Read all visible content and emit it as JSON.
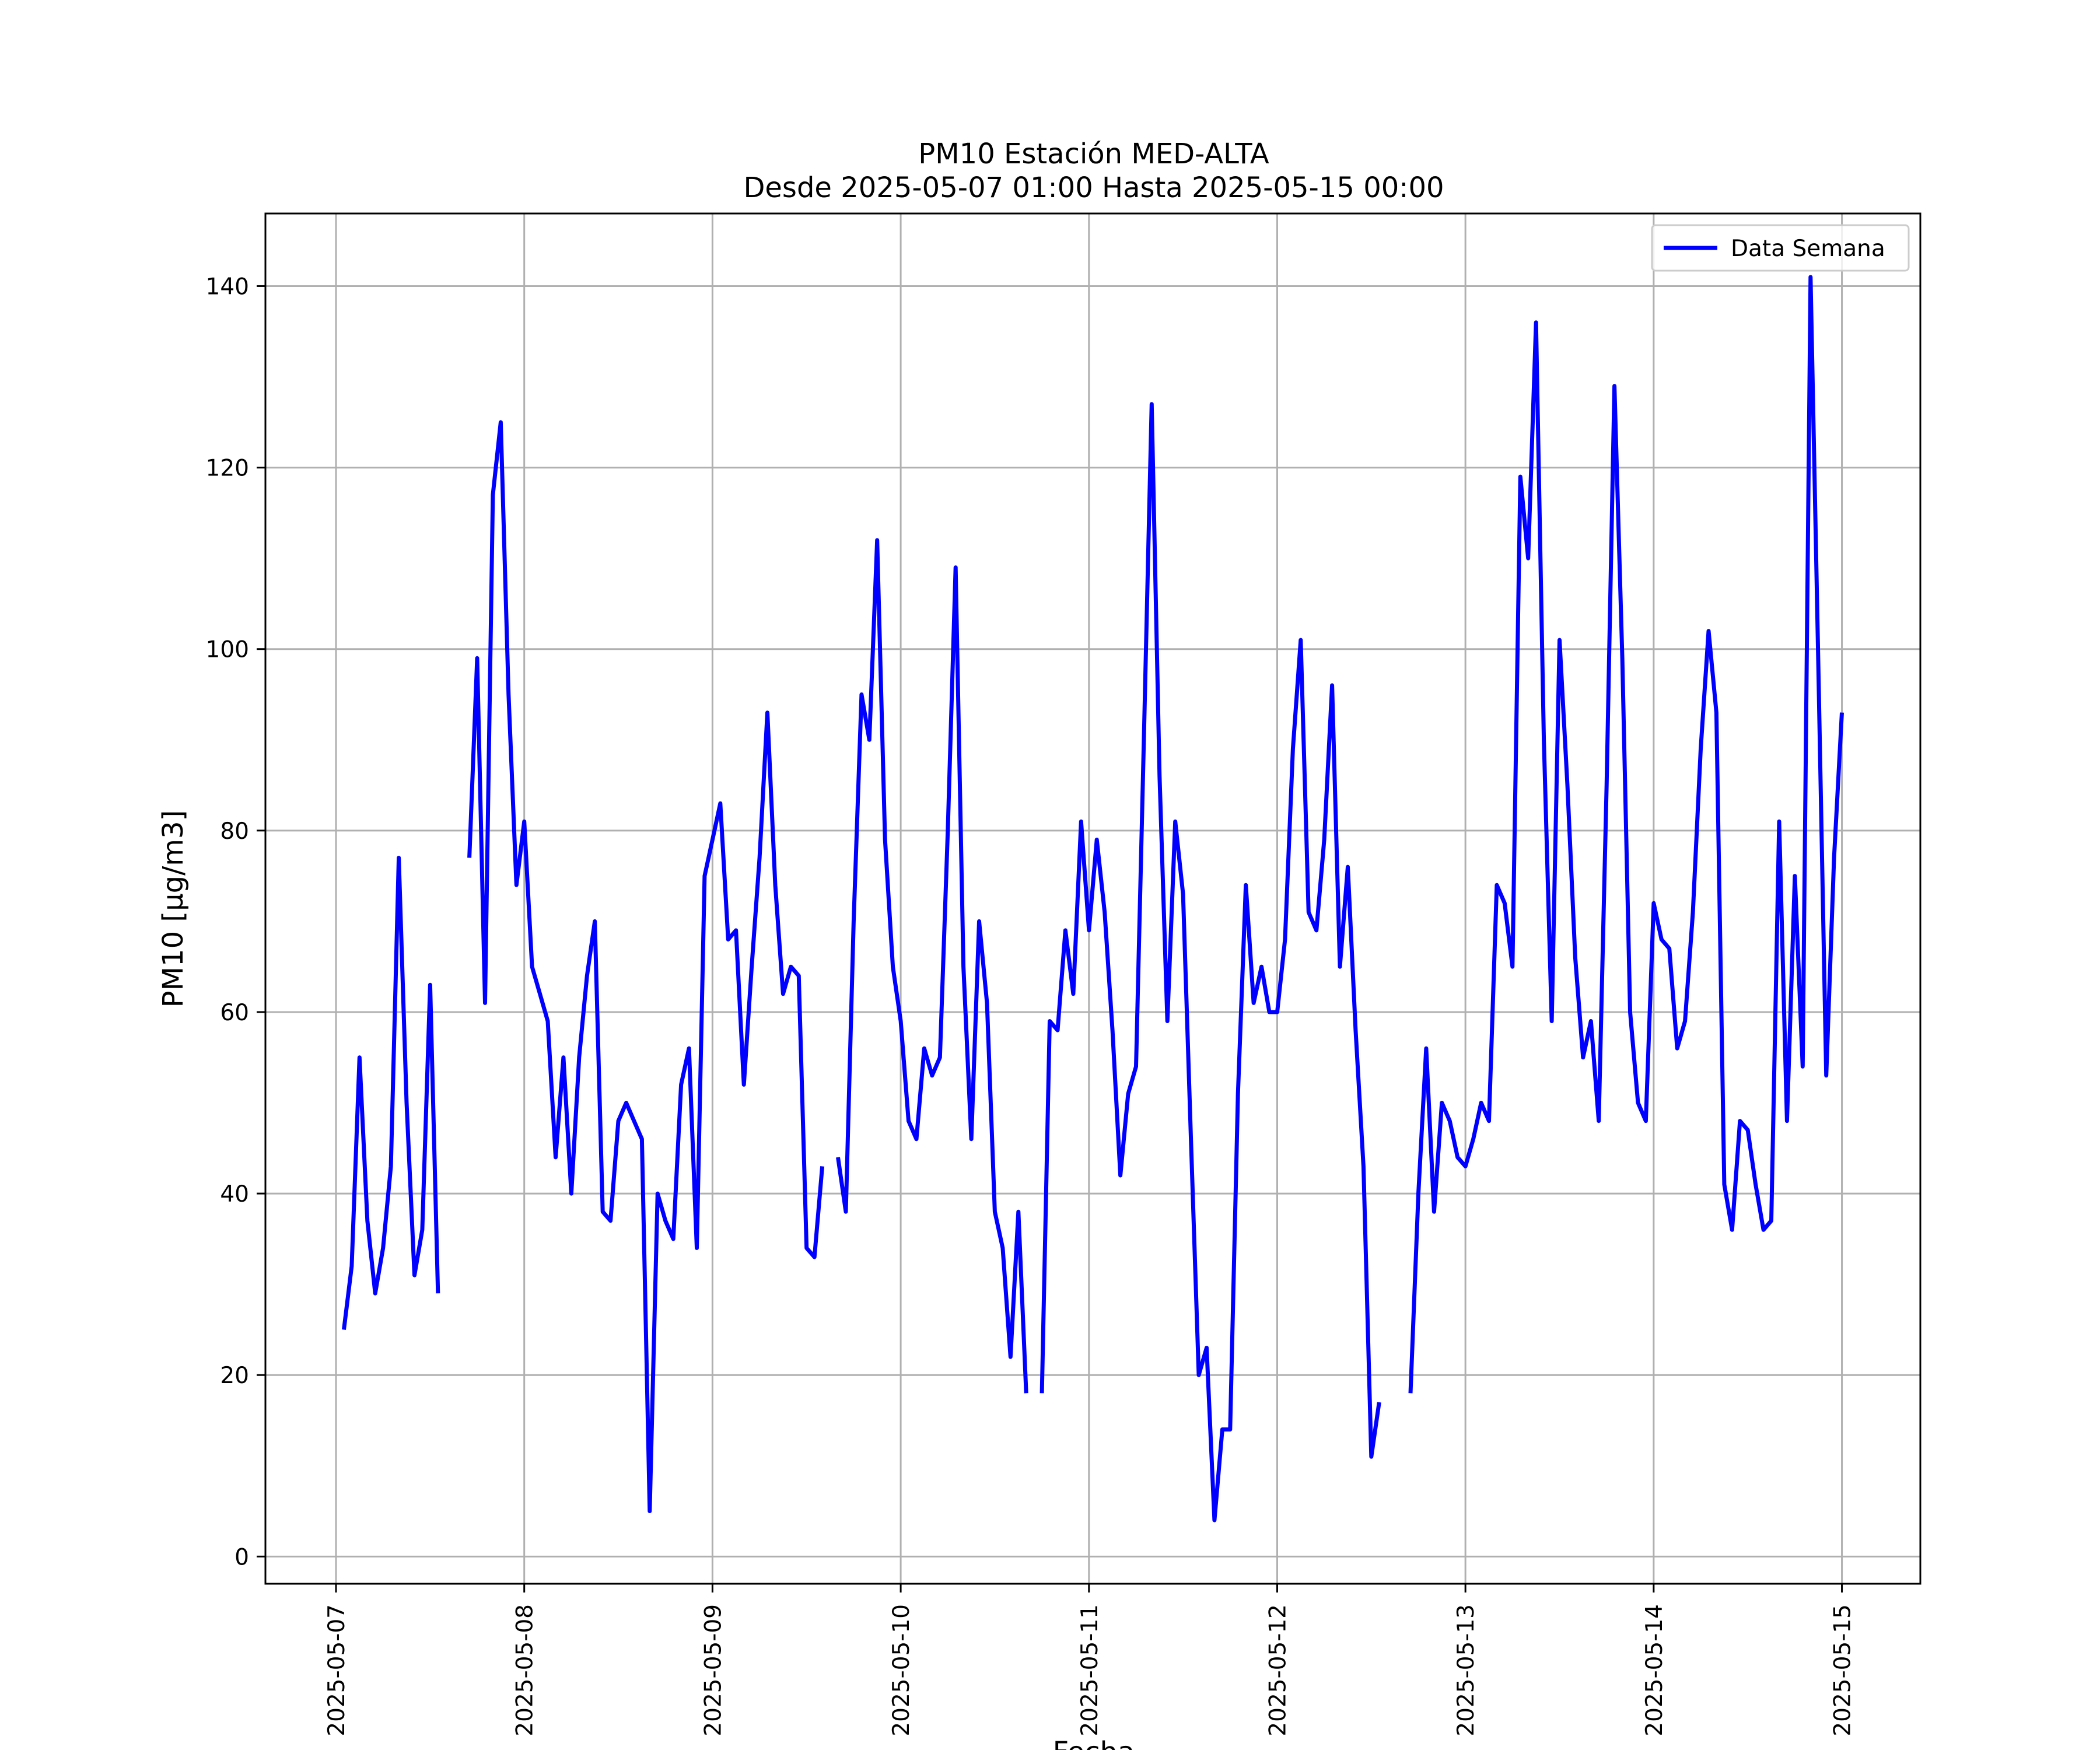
{
  "chart_data": {
    "type": "line",
    "title": [
      "PM10 Estación MED-ALTA",
      "Desde 2025-05-07 01:00 Hasta 2025-05-15 00:00"
    ],
    "xlabel": "Fecha",
    "ylabel": "PM10 [μg/m3]",
    "x_tick_labels": [
      "2025-05-07",
      "2025-05-08",
      "2025-05-09",
      "2025-05-10",
      "2025-05-11",
      "2025-05-12",
      "2025-05-13",
      "2025-05-14",
      "2025-05-15"
    ],
    "y_ticks": [
      0,
      20,
      40,
      60,
      80,
      100,
      120,
      140
    ],
    "xlim": [
      "2025-05-06 15:00",
      "2025-05-15 10:00"
    ],
    "ylim": [
      -3,
      148
    ],
    "grid": true,
    "legend": {
      "placement": "upper right",
      "entries": [
        "Data Semana"
      ]
    },
    "colors": {
      "series": "#0000ff",
      "grid": "#b0b0b0",
      "axes": "#000000"
    },
    "series": [
      {
        "name": "Data Semana",
        "points": [
          [
            "2025-05-07 01:00",
            25
          ],
          [
            "2025-05-07 02:00",
            32
          ],
          [
            "2025-05-07 03:00",
            55
          ],
          [
            "2025-05-07 04:00",
            37
          ],
          [
            "2025-05-07 05:00",
            29
          ],
          [
            "2025-05-07 06:00",
            34
          ],
          [
            "2025-05-07 07:00",
            43
          ],
          [
            "2025-05-07 08:00",
            77
          ],
          [
            "2025-05-07 09:00",
            50
          ],
          [
            "2025-05-07 10:00",
            31
          ],
          [
            "2025-05-07 11:00",
            36
          ],
          [
            "2025-05-07 12:00",
            63
          ],
          [
            "2025-05-07 13:00",
            29
          ],
          [
            "2025-05-07 14:00",
            null
          ],
          [
            "2025-05-07 15:00",
            null
          ],
          [
            "2025-05-07 16:00",
            null
          ],
          [
            "2025-05-07 17:00",
            77
          ],
          [
            "2025-05-07 18:00",
            99
          ],
          [
            "2025-05-07 19:00",
            61
          ],
          [
            "2025-05-07 20:00",
            117
          ],
          [
            "2025-05-07 21:00",
            125
          ],
          [
            "2025-05-07 22:00",
            95
          ],
          [
            "2025-05-07 23:00",
            74
          ],
          [
            "2025-05-08 00:00",
            81
          ],
          [
            "2025-05-08 01:00",
            65
          ],
          [
            "2025-05-08 02:00",
            62
          ],
          [
            "2025-05-08 03:00",
            59
          ],
          [
            "2025-05-08 04:00",
            44
          ],
          [
            "2025-05-08 05:00",
            55
          ],
          [
            "2025-05-08 06:00",
            40
          ],
          [
            "2025-05-08 07:00",
            55
          ],
          [
            "2025-05-08 08:00",
            64
          ],
          [
            "2025-05-08 09:00",
            70
          ],
          [
            "2025-05-08 10:00",
            38
          ],
          [
            "2025-05-08 11:00",
            37
          ],
          [
            "2025-05-08 12:00",
            48
          ],
          [
            "2025-05-08 13:00",
            50
          ],
          [
            "2025-05-08 14:00",
            48
          ],
          [
            "2025-05-08 15:00",
            46
          ],
          [
            "2025-05-08 16:00",
            5
          ],
          [
            "2025-05-08 17:00",
            40
          ],
          [
            "2025-05-08 18:00",
            37
          ],
          [
            "2025-05-08 19:00",
            35
          ],
          [
            "2025-05-08 20:00",
            52
          ],
          [
            "2025-05-08 21:00",
            56
          ],
          [
            "2025-05-08 22:00",
            34
          ],
          [
            "2025-05-08 23:00",
            75
          ],
          [
            "2025-05-09 00:00",
            79
          ],
          [
            "2025-05-09 01:00",
            83
          ],
          [
            "2025-05-09 02:00",
            68
          ],
          [
            "2025-05-09 03:00",
            69
          ],
          [
            "2025-05-09 04:00",
            52
          ],
          [
            "2025-05-09 05:00",
            65
          ],
          [
            "2025-05-09 06:00",
            77
          ],
          [
            "2025-05-09 07:00",
            93
          ],
          [
            "2025-05-09 08:00",
            74
          ],
          [
            "2025-05-09 09:00",
            62
          ],
          [
            "2025-05-09 10:00",
            65
          ],
          [
            "2025-05-09 11:00",
            64
          ],
          [
            "2025-05-09 12:00",
            34
          ],
          [
            "2025-05-09 13:00",
            33
          ],
          [
            "2025-05-09 14:00",
            43
          ],
          [
            "2025-05-09 15:00",
            null
          ],
          [
            "2025-05-09 16:00",
            44
          ],
          [
            "2025-05-09 17:00",
            38
          ],
          [
            "2025-05-09 18:00",
            70
          ],
          [
            "2025-05-09 19:00",
            95
          ],
          [
            "2025-05-09 20:00",
            90
          ],
          [
            "2025-05-09 21:00",
            112
          ],
          [
            "2025-05-09 22:00",
            79
          ],
          [
            "2025-05-09 23:00",
            65
          ],
          [
            "2025-05-10 00:00",
            59
          ],
          [
            "2025-05-10 01:00",
            48
          ],
          [
            "2025-05-10 02:00",
            46
          ],
          [
            "2025-05-10 03:00",
            56
          ],
          [
            "2025-05-10 04:00",
            53
          ],
          [
            "2025-05-10 05:00",
            55
          ],
          [
            "2025-05-10 06:00",
            80
          ],
          [
            "2025-05-10 07:00",
            109
          ],
          [
            "2025-05-10 08:00",
            65
          ],
          [
            "2025-05-10 09:00",
            46
          ],
          [
            "2025-05-10 10:00",
            70
          ],
          [
            "2025-05-10 11:00",
            61
          ],
          [
            "2025-05-10 12:00",
            38
          ],
          [
            "2025-05-10 13:00",
            34
          ],
          [
            "2025-05-10 14:00",
            22
          ],
          [
            "2025-05-10 15:00",
            38
          ],
          [
            "2025-05-10 16:00",
            18
          ],
          [
            "2025-05-10 17:00",
            null
          ],
          [
            "2025-05-10 18:00",
            18
          ],
          [
            "2025-05-10 19:00",
            59
          ],
          [
            "2025-05-10 20:00",
            58
          ],
          [
            "2025-05-10 21:00",
            69
          ],
          [
            "2025-05-10 22:00",
            62
          ],
          [
            "2025-05-10 23:00",
            81
          ],
          [
            "2025-05-11 00:00",
            69
          ],
          [
            "2025-05-11 01:00",
            79
          ],
          [
            "2025-05-11 02:00",
            71
          ],
          [
            "2025-05-11 03:00",
            58
          ],
          [
            "2025-05-11 04:00",
            42
          ],
          [
            "2025-05-11 05:00",
            51
          ],
          [
            "2025-05-11 06:00",
            54
          ],
          [
            "2025-05-11 07:00",
            90
          ],
          [
            "2025-05-11 08:00",
            127
          ],
          [
            "2025-05-11 09:00",
            86
          ],
          [
            "2025-05-11 10:00",
            59
          ],
          [
            "2025-05-11 11:00",
            81
          ],
          [
            "2025-05-11 12:00",
            73
          ],
          [
            "2025-05-11 13:00",
            46
          ],
          [
            "2025-05-11 14:00",
            20
          ],
          [
            "2025-05-11 15:00",
            23
          ],
          [
            "2025-05-11 16:00",
            4
          ],
          [
            "2025-05-11 17:00",
            14
          ],
          [
            "2025-05-11 18:00",
            14
          ],
          [
            "2025-05-11 19:00",
            51
          ],
          [
            "2025-05-11 20:00",
            74
          ],
          [
            "2025-05-11 21:00",
            61
          ],
          [
            "2025-05-11 22:00",
            65
          ],
          [
            "2025-05-11 23:00",
            60
          ],
          [
            "2025-05-12 00:00",
            60
          ],
          [
            "2025-05-12 01:00",
            68
          ],
          [
            "2025-05-12 02:00",
            89
          ],
          [
            "2025-05-12 03:00",
            101
          ],
          [
            "2025-05-12 04:00",
            71
          ],
          [
            "2025-05-12 05:00",
            69
          ],
          [
            "2025-05-12 06:00",
            79
          ],
          [
            "2025-05-12 07:00",
            96
          ],
          [
            "2025-05-12 08:00",
            65
          ],
          [
            "2025-05-12 09:00",
            76
          ],
          [
            "2025-05-12 10:00",
            58
          ],
          [
            "2025-05-12 11:00",
            43
          ],
          [
            "2025-05-12 12:00",
            11
          ],
          [
            "2025-05-12 13:00",
            17
          ],
          [
            "2025-05-12 14:00",
            null
          ],
          [
            "2025-05-12 15:00",
            null
          ],
          [
            "2025-05-12 16:00",
            null
          ],
          [
            "2025-05-12 17:00",
            18
          ],
          [
            "2025-05-12 18:00",
            40
          ],
          [
            "2025-05-12 19:00",
            56
          ],
          [
            "2025-05-12 20:00",
            38
          ],
          [
            "2025-05-12 21:00",
            50
          ],
          [
            "2025-05-12 22:00",
            48
          ],
          [
            "2025-05-12 23:00",
            44
          ],
          [
            "2025-05-13 00:00",
            43
          ],
          [
            "2025-05-13 01:00",
            46
          ],
          [
            "2025-05-13 02:00",
            50
          ],
          [
            "2025-05-13 03:00",
            48
          ],
          [
            "2025-05-13 04:00",
            74
          ],
          [
            "2025-05-13 05:00",
            72
          ],
          [
            "2025-05-13 06:00",
            65
          ],
          [
            "2025-05-13 07:00",
            119
          ],
          [
            "2025-05-13 08:00",
            110
          ],
          [
            "2025-05-13 09:00",
            136
          ],
          [
            "2025-05-13 10:00",
            90
          ],
          [
            "2025-05-13 11:00",
            59
          ],
          [
            "2025-05-13 12:00",
            101
          ],
          [
            "2025-05-13 13:00",
            85
          ],
          [
            "2025-05-13 14:00",
            66
          ],
          [
            "2025-05-13 15:00",
            55
          ],
          [
            "2025-05-13 16:00",
            59
          ],
          [
            "2025-05-13 17:00",
            48
          ],
          [
            "2025-05-13 18:00",
            85
          ],
          [
            "2025-05-13 19:00",
            129
          ],
          [
            "2025-05-13 20:00",
            99
          ],
          [
            "2025-05-13 21:00",
            60
          ],
          [
            "2025-05-13 22:00",
            50
          ],
          [
            "2025-05-13 23:00",
            48
          ],
          [
            "2025-05-14 00:00",
            72
          ],
          [
            "2025-05-14 01:00",
            68
          ],
          [
            "2025-05-14 02:00",
            67
          ],
          [
            "2025-05-14 03:00",
            56
          ],
          [
            "2025-05-14 04:00",
            59
          ],
          [
            "2025-05-14 05:00",
            71
          ],
          [
            "2025-05-14 06:00",
            89
          ],
          [
            "2025-05-14 07:00",
            102
          ],
          [
            "2025-05-14 08:00",
            93
          ],
          [
            "2025-05-14 09:00",
            41
          ],
          [
            "2025-05-14 10:00",
            36
          ],
          [
            "2025-05-14 11:00",
            48
          ],
          [
            "2025-05-14 12:00",
            47
          ],
          [
            "2025-05-14 13:00",
            41
          ],
          [
            "2025-05-14 14:00",
            36
          ],
          [
            "2025-05-14 15:00",
            37
          ],
          [
            "2025-05-14 16:00",
            81
          ],
          [
            "2025-05-14 17:00",
            48
          ],
          [
            "2025-05-14 18:00",
            75
          ],
          [
            "2025-05-14 19:00",
            54
          ],
          [
            "2025-05-14 20:00",
            141
          ],
          [
            "2025-05-14 21:00",
            98
          ],
          [
            "2025-05-14 22:00",
            53
          ],
          [
            "2025-05-14 23:00",
            77
          ],
          [
            "2025-05-15 00:00",
            93
          ]
        ]
      }
    ]
  }
}
